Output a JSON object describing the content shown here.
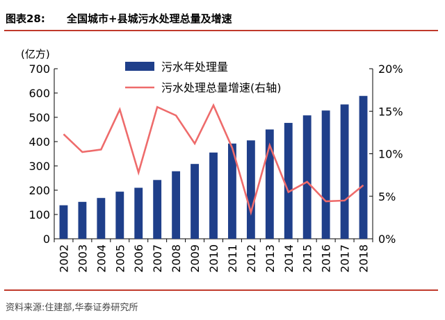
{
  "figure": {
    "label": "图表28:",
    "title": "全国城市+县城污水处理总量及增速",
    "source": "资料来源:住建部,华泰证券研究所"
  },
  "chart_data": {
    "type": "bar",
    "categories": [
      "2002",
      "2003",
      "2004",
      "2005",
      "2006",
      "2007",
      "2008",
      "2009",
      "2010",
      "2011",
      "2012",
      "2013",
      "2014",
      "2015",
      "2016",
      "2017",
      "2018"
    ],
    "series": [
      {
        "name": "污水年处理量",
        "type": "bar",
        "axis": "left",
        "color": "#1f3f8a",
        "values": [
          138,
          152,
          168,
          194,
          210,
          242,
          278,
          308,
          355,
          392,
          405,
          450,
          477,
          508,
          528,
          553,
          588
        ]
      },
      {
        "name": "污水处理总量增速(右轴)",
        "type": "line",
        "axis": "right",
        "color": "#ee6b6b",
        "values": [
          12.3,
          10.2,
          10.5,
          15.2,
          7.8,
          15.5,
          14.5,
          11.2,
          15.7,
          10.7,
          3.1,
          11.0,
          5.5,
          6.7,
          4.4,
          4.5,
          6.3
        ]
      }
    ],
    "ylabel_left": "(亿方)",
    "ylim_left": [
      0,
      700
    ],
    "yticks_left": [
      "0",
      "100",
      "200",
      "300",
      "400",
      "500",
      "600",
      "700"
    ],
    "ylim_right": [
      0,
      20
    ],
    "yticks_right": [
      "0%",
      "5%",
      "10%",
      "15%",
      "20%"
    ],
    "legend_position": "top-center",
    "grid": false
  }
}
